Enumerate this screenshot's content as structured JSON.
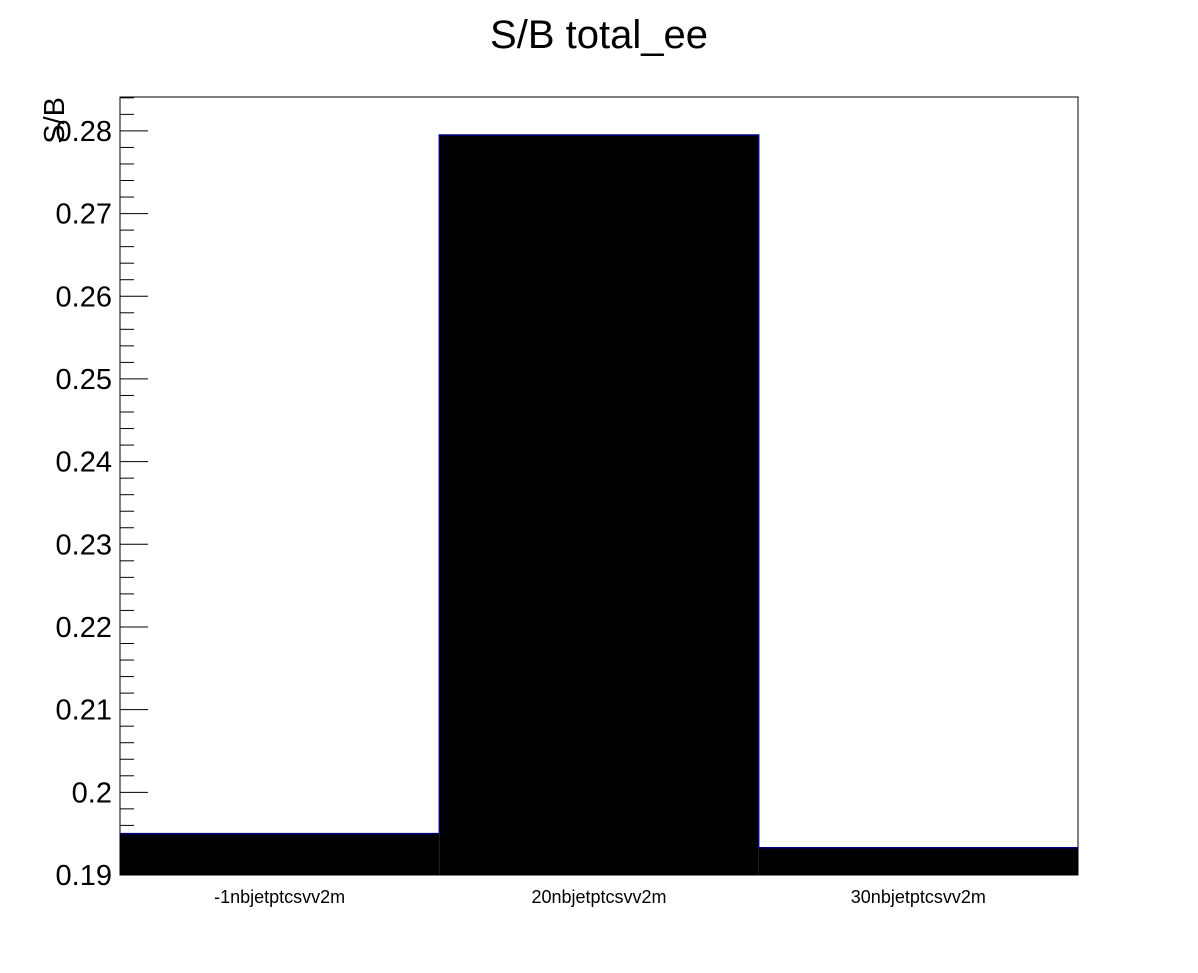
{
  "chart_data": {
    "type": "bar",
    "title": "S/B total_ee",
    "xlabel": "",
    "ylabel": "S/B",
    "categories": [
      "-1nbjetptcsvv2m",
      "20nbjetptcsvv2m",
      "30nbjetptcsvv2m"
    ],
    "values": [
      0.195,
      0.2795,
      0.1933
    ],
    "ylim": [
      0.19,
      0.2841
    ],
    "yticks": [
      0.19,
      0.2,
      0.21,
      0.22,
      0.23,
      0.24,
      0.25,
      0.26,
      0.27,
      0.28
    ],
    "ytick_labels": [
      "0.19",
      "0.2",
      "0.21",
      "0.22",
      "0.23",
      "0.24",
      "0.25",
      "0.26",
      "0.27",
      "0.28"
    ],
    "grid": false,
    "bar_fill": "#000000",
    "bar_edge": "#000080"
  }
}
